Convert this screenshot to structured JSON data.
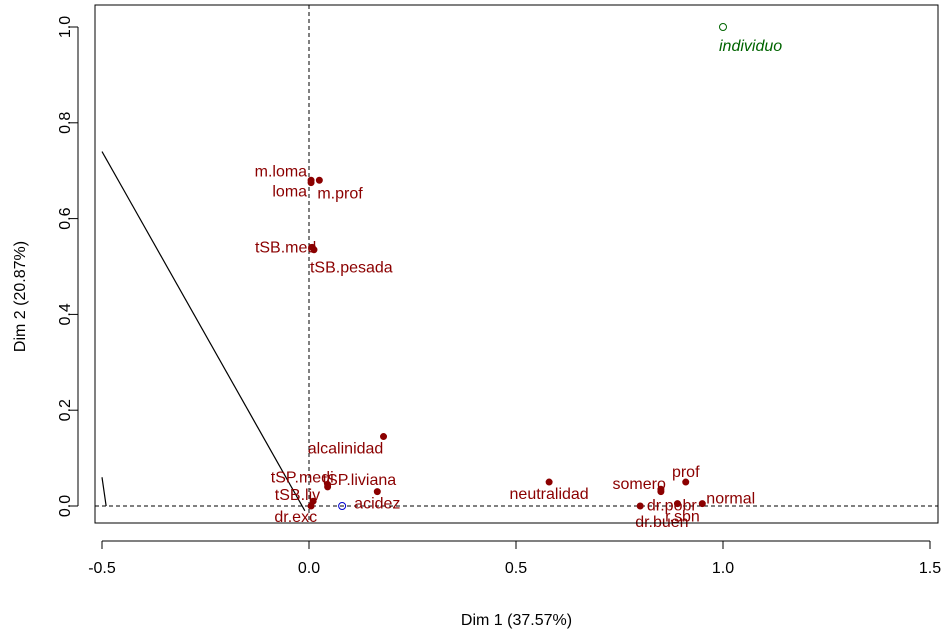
{
  "chart_data": {
    "type": "scatter",
    "xlabel": "Dim 1 (37.57%)",
    "ylabel": "Dim 2 (20.87%)",
    "xlim": [
      -0.5,
      1.5
    ],
    "ylim": [
      0.0,
      1.0
    ],
    "x_ticks": [
      {
        "value": -0.5,
        "label": "-0.5"
      },
      {
        "value": 0.0,
        "label": "0.0"
      },
      {
        "value": 0.5,
        "label": "0.5"
      },
      {
        "value": 1.0,
        "label": "1.0"
      },
      {
        "value": 1.5,
        "label": "1.5"
      }
    ],
    "y_ticks": [
      {
        "value": 0.0,
        "label": "0.0"
      },
      {
        "value": 0.2,
        "label": "0.2"
      },
      {
        "value": 0.4,
        "label": "0.4"
      },
      {
        "value": 0.6,
        "label": "0.6"
      },
      {
        "value": 0.8,
        "label": "0.8"
      },
      {
        "value": 1.0,
        "label": "1.0"
      }
    ],
    "reference_lines": {
      "x": 0.0,
      "y": 0.0
    },
    "line_segments": [
      {
        "from": [
          -0.5,
          0.74
        ],
        "to": [
          -0.01,
          -0.01
        ]
      },
      {
        "from": [
          -0.5,
          0.06
        ],
        "to": [
          -0.49,
          0.0
        ]
      }
    ],
    "colors": {
      "variables": "#8b0000",
      "individual": "#006400",
      "supplementary": "#0000cd"
    },
    "series": [
      {
        "name": "",
        "color": "#8b0000",
        "marker": "filled-circle",
        "points": [
          {
            "label": "m.loma",
            "x": 0.005,
            "y": 0.68
          },
          {
            "label": "loma",
            "x": 0.005,
            "y": 0.675
          },
          {
            "label": "m.prof",
            "x": 0.025,
            "y": 0.68
          },
          {
            "label": "tSB.med",
            "x": 0.008,
            "y": 0.54
          },
          {
            "label": "tSB.pesada",
            "x": 0.012,
            "y": 0.535
          },
          {
            "label": "alcalinidad",
            "x": 0.18,
            "y": 0.145
          },
          {
            "label": "tSP.medi",
            "x": 0.045,
            "y": 0.045
          },
          {
            "label": "tSP.liviana",
            "x": 0.045,
            "y": 0.04
          },
          {
            "label": "tSB.liv",
            "x": 0.01,
            "y": 0.01
          },
          {
            "label": "dr.exc",
            "x": 0.005,
            "y": 0.0
          },
          {
            "label": "acidez",
            "x": 0.165,
            "y": 0.03
          },
          {
            "label": "neutralidad",
            "x": 0.58,
            "y": 0.05
          },
          {
            "label": "somero",
            "x": 0.85,
            "y": 0.035
          },
          {
            "label": "prof",
            "x": 0.91,
            "y": 0.05
          },
          {
            "label": "dr.pobr",
            "x": 0.85,
            "y": 0.03
          },
          {
            "label": "normal",
            "x": 0.95,
            "y": 0.005
          },
          {
            "label": "dr.buen",
            "x": 0.8,
            "y": 0.0
          },
          {
            "label": "r.sbn",
            "x": 0.89,
            "y": 0.005
          }
        ]
      },
      {
        "name": "",
        "color": "#006400",
        "marker": "open-circle",
        "points": [
          {
            "label": "individuo",
            "x": 1.0,
            "y": 1.0
          }
        ]
      },
      {
        "name": "",
        "color": "#0000cd",
        "marker": "open-circle",
        "points": [
          {
            "label": "",
            "x": 0.08,
            "y": 0.0
          }
        ]
      }
    ]
  }
}
